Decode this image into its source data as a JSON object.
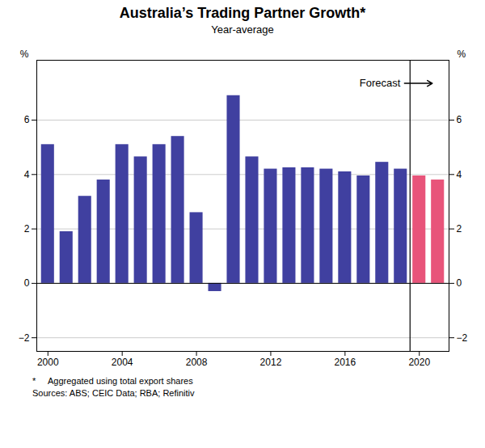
{
  "chart_data": {
    "type": "bar",
    "title": "Australia’s Trading Partner Growth*",
    "subtitle": "Year-average",
    "ylabel": "%",
    "y2label": "%",
    "footnotes": [
      "*     Aggregated using total export shares",
      "Sources: ABS; CEIC Data; RBA; Refinitiv"
    ],
    "x": [
      2000,
      2001,
      2002,
      2003,
      2004,
      2005,
      2006,
      2007,
      2008,
      2009,
      2010,
      2011,
      2012,
      2013,
      2014,
      2015,
      2016,
      2017,
      2018,
      2019,
      2020,
      2021
    ],
    "values": [
      5.1,
      1.9,
      3.2,
      3.8,
      5.1,
      4.65,
      5.1,
      5.4,
      2.6,
      -0.3,
      6.9,
      4.65,
      4.2,
      4.25,
      4.25,
      4.2,
      4.1,
      3.95,
      4.45,
      4.2,
      3.95,
      3.8
    ],
    "colors": [
      "#4040a0",
      "#4040a0",
      "#4040a0",
      "#4040a0",
      "#4040a0",
      "#4040a0",
      "#4040a0",
      "#4040a0",
      "#4040a0",
      "#4040a0",
      "#4040a0",
      "#4040a0",
      "#4040a0",
      "#4040a0",
      "#4040a0",
      "#4040a0",
      "#4040a0",
      "#4040a0",
      "#4040a0",
      "#4040a0",
      "#e8547a",
      "#e8547a"
    ],
    "xlim": [
      1999.4,
      2021.6
    ],
    "xticks": [
      2000,
      2004,
      2008,
      2012,
      2016,
      2020
    ],
    "ylim": [
      -2.5,
      8.2
    ],
    "yticks": [
      -2,
      0,
      2,
      4,
      6
    ],
    "y2lim": [
      -2.5,
      8.2
    ],
    "y2ticks": [
      -2,
      0,
      2,
      4,
      6
    ],
    "grid": true,
    "annotations": [
      {
        "text": "Forecast",
        "x": 2019.5,
        "y": 7.35
      }
    ]
  }
}
